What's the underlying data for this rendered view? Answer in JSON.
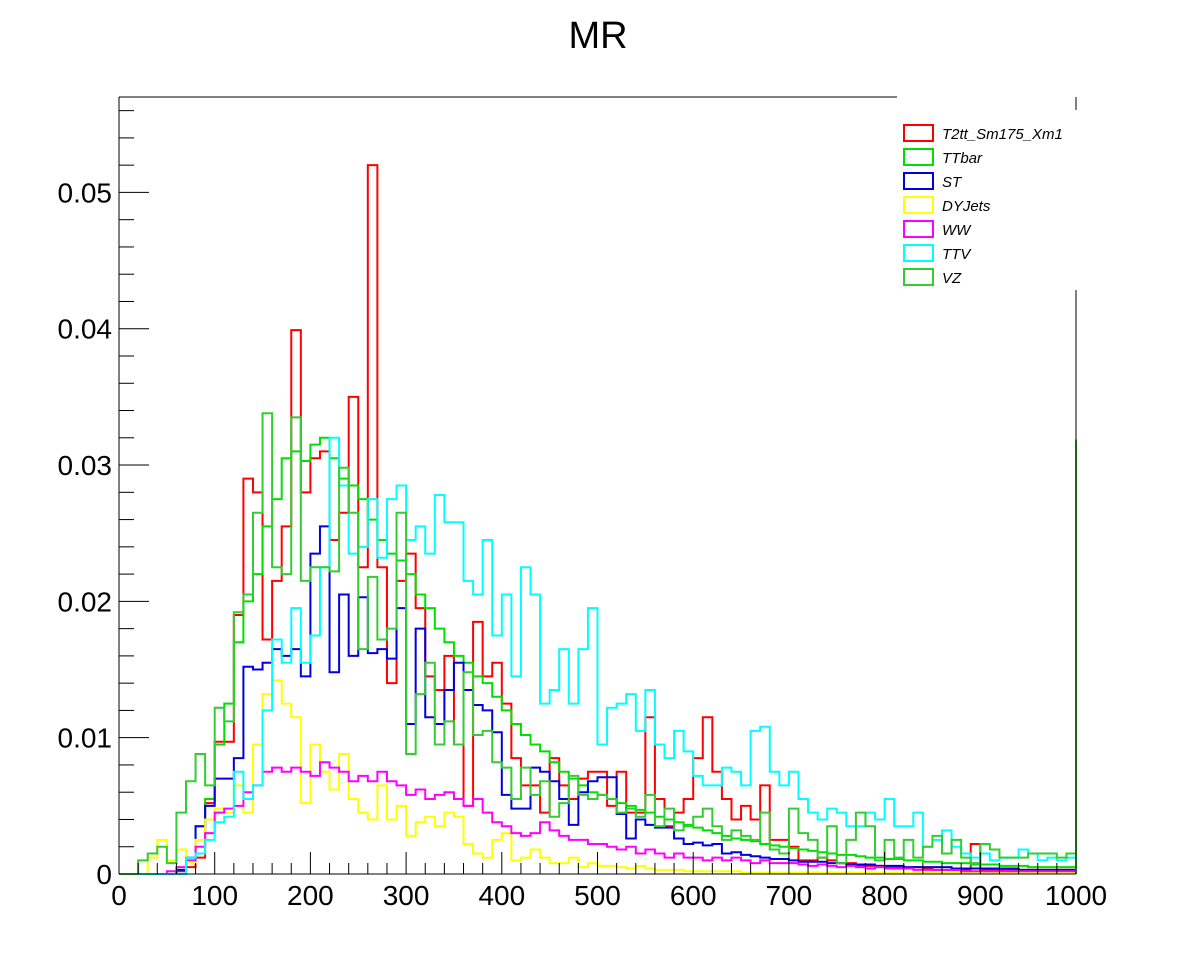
{
  "chart_data": {
    "type": "line",
    "style": "step-histogram",
    "title": "MR",
    "xlabel": "",
    "ylabel": "",
    "xlim": [
      0,
      1000
    ],
    "ylim": [
      0,
      0.057
    ],
    "bin_width": 10,
    "x_ticks": [
      "0",
      "100",
      "200",
      "300",
      "400",
      "500",
      "600",
      "700",
      "800",
      "900",
      "1000"
    ],
    "y_ticks": [
      "0",
      "0.01",
      "0.02",
      "0.03",
      "0.04",
      "0.05"
    ],
    "grid": false,
    "legend_position": "top-right",
    "series": [
      {
        "name": "T2tt_Sm175_Xm1",
        "color": "#ff0000",
        "values": [
          0,
          0,
          0,
          0,
          0,
          0,
          0.0002,
          0.0005,
          0.0012,
          0.0052,
          0.0097,
          0.0097,
          0.019,
          0.029,
          0.028,
          0.0172,
          0.0215,
          0.0255,
          0.0399,
          0.028,
          0.0305,
          0.031,
          0.0245,
          0.0265,
          0.035,
          0.0225,
          0.052,
          0.0225,
          0.014,
          0.0215,
          0.0235,
          0.0195,
          0.0145,
          0.0135,
          0.016,
          0.0095,
          0.005,
          0.0185,
          0.0145,
          0.0155,
          0.0125,
          0.0085,
          0.0065,
          0.0065,
          0.0045,
          0.0085,
          0.0065,
          0.0055,
          0.007,
          0.0075,
          0.0075,
          0.005,
          0.0075,
          0.0045,
          0.0045,
          0.0115,
          0.0055,
          0.0035,
          0.0045,
          0.0055,
          0.0085,
          0.0115,
          0.0075,
          0.0055,
          0.004,
          0.005,
          0.004,
          0.0065,
          0.0025,
          0.0025,
          0.002,
          0.001,
          0.001,
          0.0012,
          0.001,
          0.0008,
          0.0008,
          0.0006,
          0.0006,
          0.0006,
          0.0005,
          0.0005,
          0.0004,
          0.0005,
          0.0004,
          0.0003,
          0.0003,
          0.0003,
          0.0003,
          0.0022,
          0.0003,
          0.0003,
          0.0003,
          0.0003,
          0.0003,
          0.0003,
          0.0003,
          0.0003,
          0.0003,
          0.0003
        ],
        "overflow": 0.0068
      },
      {
        "name": "TTbar",
        "color": "#00e000",
        "values": [
          0,
          0,
          0,
          0,
          0,
          0,
          0.0003,
          0.0012,
          0.0035,
          0.0055,
          0.0095,
          0.0125,
          0.017,
          0.02,
          0.022,
          0.0255,
          0.0275,
          0.0305,
          0.031,
          0.0303,
          0.0315,
          0.032,
          0.0305,
          0.029,
          0.0285,
          0.0275,
          0.026,
          0.0245,
          0.0235,
          0.023,
          0.022,
          0.0205,
          0.0195,
          0.018,
          0.017,
          0.016,
          0.0155,
          0.0145,
          0.014,
          0.013,
          0.012,
          0.011,
          0.0102,
          0.0095,
          0.009,
          0.0082,
          0.0075,
          0.007,
          0.0065,
          0.006,
          0.0058,
          0.0055,
          0.0052,
          0.005,
          0.0047,
          0.0045,
          0.0042,
          0.004,
          0.0038,
          0.0036,
          0.0034,
          0.0032,
          0.003,
          0.0028,
          0.0026,
          0.0025,
          0.0024,
          0.0022,
          0.0021,
          0.002,
          0.0019,
          0.0018,
          0.0017,
          0.0016,
          0.0015,
          0.0014,
          0.0014,
          0.0013,
          0.0012,
          0.0012,
          0.0011,
          0.0011,
          0.001,
          0.001,
          0.0009,
          0.0009,
          0.0008,
          0.0008,
          0.0008,
          0.0007,
          0.0007,
          0.0007,
          0.0006,
          0.0006,
          0.0006,
          0.0005,
          0.0005,
          0.0005,
          0.0005,
          0.0005
        ],
        "overflow": 0.0069
      },
      {
        "name": "ST",
        "color": "#0000e0",
        "values": [
          0,
          0,
          0,
          0,
          0,
          0,
          0.0003,
          0.0012,
          0.0035,
          0.005,
          0.007,
          0.007,
          0.0085,
          0.0152,
          0.015,
          0.0155,
          0.0165,
          0.016,
          0.0165,
          0.0145,
          0.0235,
          0.0255,
          0.0148,
          0.0205,
          0.016,
          0.0203,
          0.0162,
          0.0165,
          0.0158,
          0.0195,
          0.011,
          0.018,
          0.0115,
          0.011,
          0.0135,
          0.0155,
          0.0135,
          0.0124,
          0.012,
          0.0104,
          0.0058,
          0.0048,
          0.0048,
          0.0078,
          0.0075,
          0.0068,
          0.0055,
          0.0036,
          0.006,
          0.0068,
          0.0071,
          0.0071,
          0.0044,
          0.0026,
          0.004,
          0.0036,
          0.0034,
          0.0034,
          0.0026,
          0.0022,
          0.0023,
          0.0021,
          0.0022,
          0.0015,
          0.0016,
          0.0014,
          0.0013,
          0.0012,
          0.0011,
          0.0011,
          0.001,
          0.0009,
          0.0009,
          0.0009,
          0.0008,
          0.0008,
          0.0007,
          0.0007,
          0.0007,
          0.0006,
          0.0006,
          0.0006,
          0.0005,
          0.0005,
          0.0005,
          0.0005,
          0.0005,
          0.0004,
          0.0004,
          0.0004,
          0.0004,
          0.0004,
          0.0004,
          0.0004,
          0.0003,
          0.0003,
          0.0003,
          0.0003,
          0.0003,
          0.0003
        ],
        "overflow": 0.0098
      },
      {
        "name": "DYJets",
        "color": "#ffff00",
        "values": [
          0,
          0,
          0,
          0.0012,
          0.0025,
          0.001,
          0.0018,
          0.0008,
          0.0025,
          0.004,
          0.0048,
          0.0045,
          0.0065,
          0.0045,
          0.0095,
          0.0132,
          0.0142,
          0.0125,
          0.0115,
          0.0052,
          0.0095,
          0.0075,
          0.0062,
          0.0088,
          0.0055,
          0.0045,
          0.004,
          0.0065,
          0.004,
          0.005,
          0.0028,
          0.0038,
          0.0042,
          0.0035,
          0.0045,
          0.0042,
          0.0022,
          0.0015,
          0.0012,
          0.0025,
          0.003,
          0.001,
          0.0012,
          0.0018,
          0.0012,
          0.0008,
          0.0008,
          0.0012,
          0.0005,
          0.0008,
          0.0006,
          0.0006,
          0.0005,
          0.0004,
          0.0006,
          0.0004,
          0.0003,
          0.0003,
          0.0003,
          0.0002,
          0.0002,
          0.0002,
          0.0002,
          0.0002,
          0.0002,
          0.0001,
          0.0001,
          0.0001,
          0.0001,
          0.0001,
          0.0001,
          0.0001,
          0.0001,
          0.0001,
          0.0001,
          0.0001,
          0.0001,
          0.0001,
          0.0001,
          0.0001,
          0.0001,
          0.0001,
          0.0001,
          0.0001,
          0.0001,
          0.0001,
          0.0001,
          0.0001,
          0.0001,
          0.0001,
          0.0001,
          0.0001,
          0.0001,
          0.0001,
          0.0001,
          0.0001,
          0.0001,
          0.0001,
          0.0001,
          0.0001
        ],
        "overflow": 0.001
      },
      {
        "name": "WW",
        "color": "#ff00ff",
        "values": [
          0,
          0,
          0,
          0,
          0,
          0.0002,
          0.0005,
          0.001,
          0.002,
          0.003,
          0.0045,
          0.0048,
          0.005,
          0.006,
          0.0065,
          0.0075,
          0.0078,
          0.0075,
          0.0078,
          0.0075,
          0.0072,
          0.0082,
          0.0078,
          0.0075,
          0.0068,
          0.0072,
          0.0068,
          0.0075,
          0.0068,
          0.0065,
          0.0058,
          0.0062,
          0.0055,
          0.0058,
          0.006,
          0.0055,
          0.005,
          0.0055,
          0.0045,
          0.0038,
          0.0035,
          0.003,
          0.0028,
          0.003,
          0.0038,
          0.0032,
          0.0028,
          0.0025,
          0.0025,
          0.0022,
          0.0022,
          0.002,
          0.0018,
          0.002,
          0.0015,
          0.0018,
          0.0015,
          0.0012,
          0.0015,
          0.0012,
          0.0012,
          0.001,
          0.0012,
          0.001,
          0.0012,
          0.001,
          0.0008,
          0.001,
          0.0008,
          0.0008,
          0.0008,
          0.0007,
          0.0006,
          0.0007,
          0.0006,
          0.0005,
          0.0006,
          0.0005,
          0.0004,
          0.0005,
          0.0004,
          0.0004,
          0.0004,
          0.0003,
          0.0003,
          0.0003,
          0.0003,
          0.0003,
          0.0002,
          0.0002,
          0.0002,
          0.0002,
          0.0002,
          0.0002,
          0.0002,
          0.0002,
          0.0002,
          0.0002,
          0.0002,
          0.0002
        ],
        "overflow": 0.0048
      },
      {
        "name": "TTV",
        "color": "#00ffff",
        "values": [
          0,
          0,
          0,
          0,
          0,
          0,
          0,
          0.0012,
          0.0015,
          0.0025,
          0.0038,
          0.0042,
          0.0075,
          0.0055,
          0.0065,
          0.012,
          0.0172,
          0.0155,
          0.0195,
          0.0155,
          0.0175,
          0.0225,
          0.032,
          0.0285,
          0.0235,
          0.024,
          0.0275,
          0.0232,
          0.0275,
          0.0285,
          0.0245,
          0.0255,
          0.0235,
          0.0278,
          0.0258,
          0.0258,
          0.0215,
          0.0205,
          0.0245,
          0.0175,
          0.0205,
          0.0145,
          0.0225,
          0.0205,
          0.0125,
          0.0135,
          0.0165,
          0.0125,
          0.0165,
          0.0195,
          0.0095,
          0.0122,
          0.0125,
          0.0132,
          0.0105,
          0.0135,
          0.0095,
          0.0085,
          0.0105,
          0.009,
          0.0072,
          0.0065,
          0.0065,
          0.0078,
          0.0075,
          0.0065,
          0.0105,
          0.0108,
          0.0075,
          0.0065,
          0.0075,
          0.0055,
          0.0045,
          0.004,
          0.0048,
          0.0045,
          0.0035,
          0.0035,
          0.0045,
          0.004,
          0.0055,
          0.0035,
          0.0035,
          0.0045,
          0.002,
          0.0025,
          0.0032,
          0.002,
          0.0015,
          0.0012,
          0.0015,
          0.001,
          0.0012,
          0.0012,
          0.0018,
          0.0015,
          0.001,
          0.0012,
          0.001,
          0.0012
        ],
        "overflow": 0.0197
      },
      {
        "name": "VZ",
        "color": "#33cc33",
        "values": [
          0,
          0,
          0.001,
          0.0015,
          0.002,
          0.0008,
          0.0045,
          0.0068,
          0.0088,
          0.0065,
          0.0122,
          0.0112,
          0.0192,
          0.0205,
          0.0265,
          0.0338,
          0.0225,
          0.022,
          0.0335,
          0.0215,
          0.0225,
          0.0225,
          0.0222,
          0.0298,
          0.0265,
          0.0165,
          0.0218,
          0.0172,
          0.018,
          0.0265,
          0.0088,
          0.0132,
          0.0155,
          0.0095,
          0.0112,
          0.0095,
          0.0148,
          0.0102,
          0.0105,
          0.0082,
          0.0078,
          0.0055,
          0.0078,
          0.0058,
          0.0068,
          0.0042,
          0.0052,
          0.0072,
          0.0058,
          0.0055,
          0.0058,
          0.0055,
          0.0045,
          0.0048,
          0.0042,
          0.0058,
          0.0035,
          0.0048,
          0.0032,
          0.0035,
          0.0042,
          0.0048,
          0.0035,
          0.0025,
          0.0032,
          0.0028,
          0.0025,
          0.0045,
          0.0018,
          0.0015,
          0.0048,
          0.003,
          0.0025,
          0.0012,
          0.0035,
          0.0008,
          0.0025,
          0.0045,
          0.0035,
          0.001,
          0.0025,
          0.0012,
          0.0025,
          0.0012,
          0.002,
          0.0028,
          0.0015,
          0.0025,
          0.0012,
          0.0008,
          0.0022,
          0.0018,
          0.0012,
          0.0012,
          0.0012,
          0.0015,
          0.0015,
          0.0015,
          0.0012,
          0.0015
        ],
        "overflow": 0.0318
      }
    ]
  }
}
